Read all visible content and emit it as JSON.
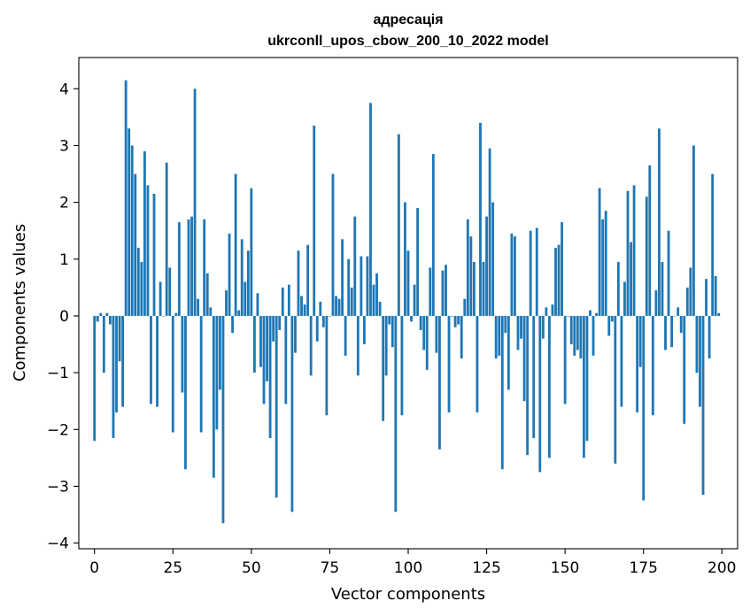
{
  "chart_data": {
    "type": "bar",
    "title_line1": "адресація",
    "title_line2": "ukrconll_upos_cbow_200_10_2022 model",
    "xlabel": "Vector components",
    "ylabel": "Components values",
    "xlim": [
      -5,
      205
    ],
    "ylim": [
      -4.1,
      4.55
    ],
    "xticks": [
      0,
      25,
      50,
      75,
      100,
      125,
      150,
      175,
      200
    ],
    "xtick_labels": [
      "0",
      "25",
      "50",
      "75",
      "100",
      "125",
      "150",
      "175",
      "200"
    ],
    "yticks": [
      -4,
      -3,
      -2,
      -1,
      0,
      1,
      2,
      3,
      4
    ],
    "ytick_labels": [
      "−4",
      "−3",
      "−2",
      "−1",
      "0",
      "1",
      "2",
      "3",
      "4"
    ],
    "bar_color": "#1f77b4",
    "grid": false,
    "values": [
      -2.2,
      -0.1,
      0.05,
      -1.0,
      0.05,
      -0.15,
      -2.15,
      -1.7,
      -0.8,
      -1.6,
      4.15,
      3.3,
      3.0,
      2.5,
      1.2,
      0.95,
      2.9,
      2.3,
      -1.55,
      2.15,
      -1.6,
      0.6,
      0.0,
      2.7,
      0.85,
      -2.05,
      0.05,
      1.65,
      -1.35,
      -2.7,
      1.7,
      1.75,
      4.0,
      0.3,
      -2.05,
      1.7,
      0.75,
      0.15,
      -2.85,
      -2.0,
      -1.3,
      -3.65,
      0.45,
      1.45,
      -0.3,
      2.5,
      0.1,
      1.35,
      0.6,
      1.15,
      2.25,
      -1.0,
      0.4,
      -0.9,
      -1.55,
      -1.15,
      -2.15,
      -0.45,
      -3.2,
      -0.25,
      0.5,
      -1.55,
      0.55,
      -3.45,
      -0.65,
      1.15,
      0.35,
      0.2,
      1.25,
      -1.05,
      3.35,
      -0.45,
      0.25,
      -0.2,
      -1.75,
      0.0,
      2.5,
      0.35,
      0.3,
      1.35,
      -0.7,
      1.0,
      0.5,
      1.75,
      -1.05,
      1.05,
      -0.5,
      1.05,
      3.75,
      0.55,
      0.75,
      0.25,
      -1.85,
      -1.05,
      -0.15,
      -0.55,
      -3.45,
      3.2,
      -1.75,
      2.0,
      1.15,
      -0.1,
      0.55,
      1.9,
      -0.25,
      -0.6,
      -0.95,
      0.85,
      2.85,
      -0.65,
      -2.35,
      0.8,
      0.9,
      -1.7,
      0.0,
      -0.2,
      -0.15,
      -0.75,
      0.3,
      1.7,
      1.4,
      0.95,
      -1.7,
      3.4,
      0.95,
      1.75,
      2.95,
      2.0,
      -0.75,
      -0.7,
      -2.7,
      -0.3,
      -1.3,
      1.45,
      1.4,
      -0.6,
      -0.4,
      -1.5,
      -2.45,
      1.5,
      -2.15,
      1.55,
      -2.75,
      -0.4,
      0.15,
      -2.5,
      0.2,
      1.2,
      1.25,
      1.65,
      -1.55,
      0.0,
      -0.5,
      -0.7,
      -0.6,
      -0.75,
      -2.5,
      -2.2,
      0.1,
      -0.7,
      0.05,
      2.25,
      1.7,
      1.85,
      -0.35,
      -0.1,
      -2.6,
      0.95,
      -1.6,
      0.6,
      2.2,
      1.3,
      2.3,
      -1.7,
      -0.9,
      -3.25,
      2.1,
      2.65,
      -1.75,
      0.45,
      3.3,
      0.95,
      -0.6,
      1.5,
      -0.55,
      0.0,
      0.15,
      -0.3,
      -1.9,
      0.5,
      0.85,
      3.0,
      -1.0,
      -1.6,
      -3.15,
      0.65,
      -0.75,
      2.5,
      0.7,
      0.05
    ]
  }
}
